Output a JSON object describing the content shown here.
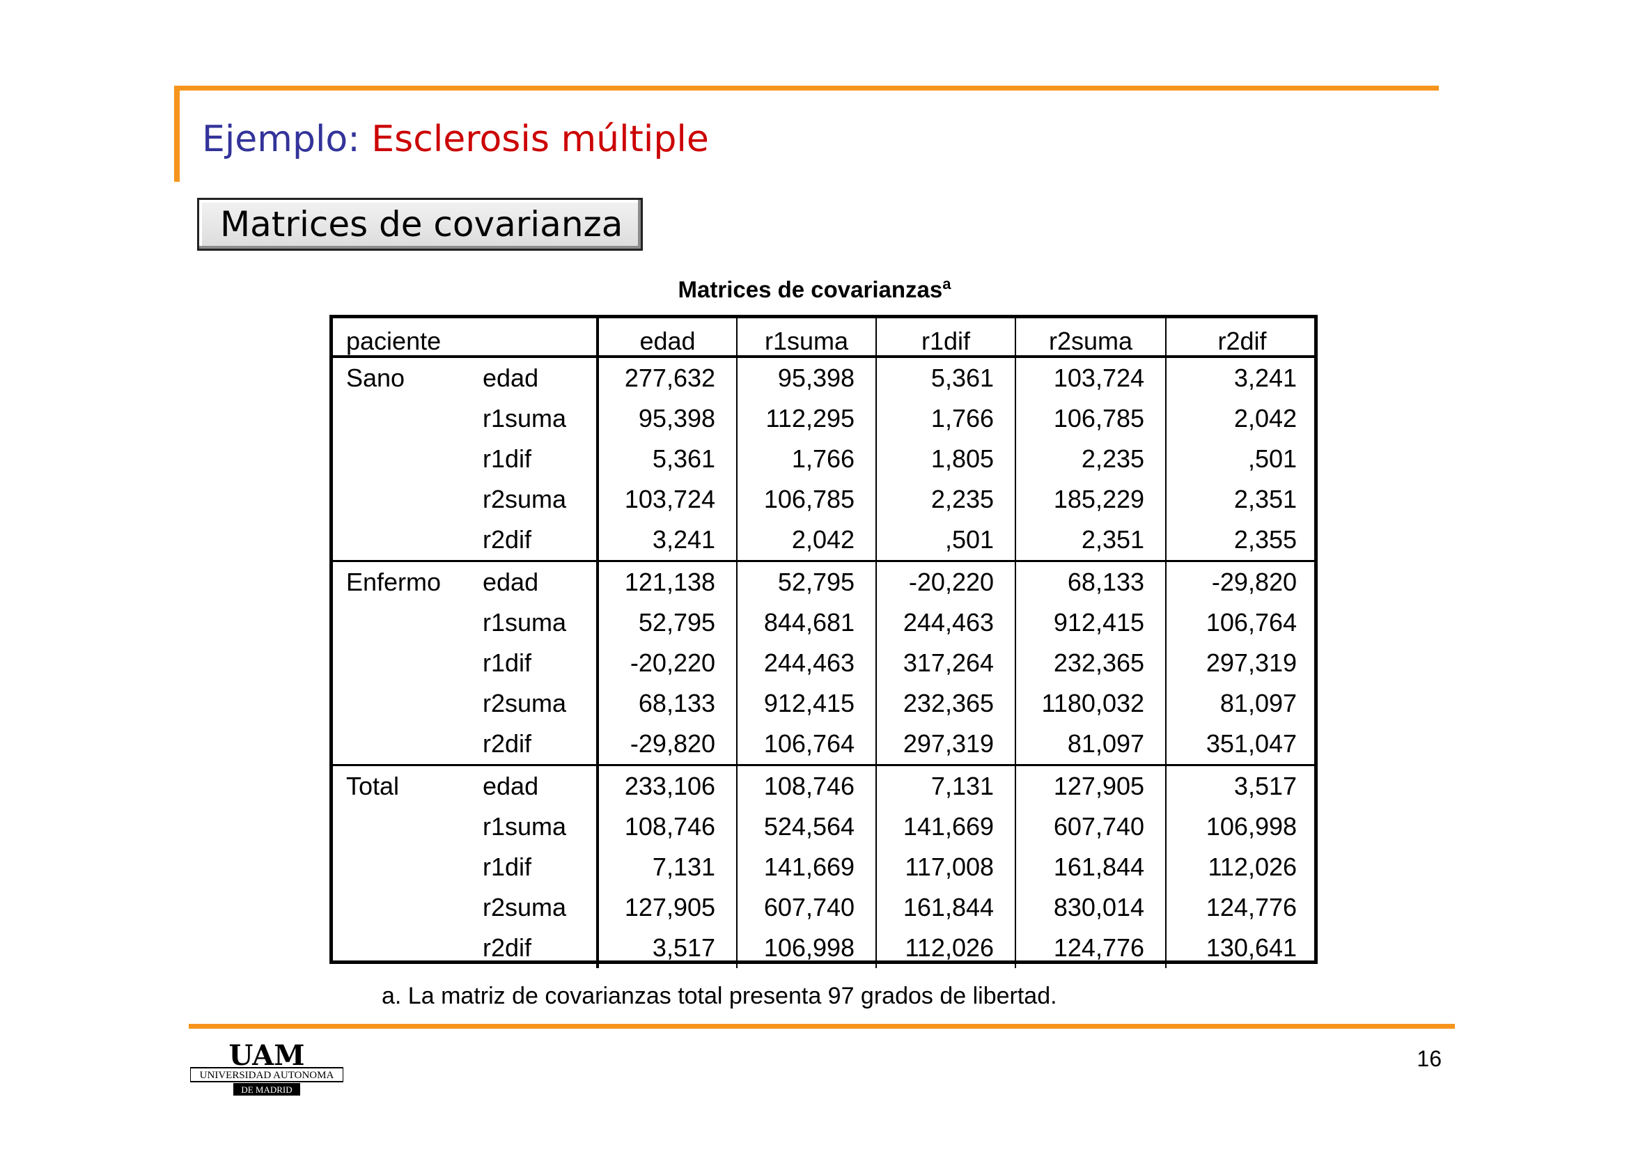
{
  "header": {
    "title_prefix": "Ejemplo:",
    "title_main": "Esclerosis múltiple",
    "subtitle": "Matrices de covarianza"
  },
  "table": {
    "caption": "Matrices de covarianzas",
    "caption_marker": "a",
    "row_header": "paciente",
    "columns": [
      "edad",
      "r1suma",
      "r1dif",
      "r2suma",
      "r2dif"
    ],
    "groups": [
      {
        "name": "Sano",
        "rows": [
          {
            "var": "edad",
            "values": [
              "277,632",
              "95,398",
              "5,361",
              "103,724",
              "3,241"
            ]
          },
          {
            "var": "r1suma",
            "values": [
              "95,398",
              "112,295",
              "1,766",
              "106,785",
              "2,042"
            ]
          },
          {
            "var": "r1dif",
            "values": [
              "5,361",
              "1,766",
              "1,805",
              "2,235",
              ",501"
            ]
          },
          {
            "var": "r2suma",
            "values": [
              "103,724",
              "106,785",
              "2,235",
              "185,229",
              "2,351"
            ]
          },
          {
            "var": "r2dif",
            "values": [
              "3,241",
              "2,042",
              ",501",
              "2,351",
              "2,355"
            ]
          }
        ]
      },
      {
        "name": "Enfermo",
        "rows": [
          {
            "var": "edad",
            "values": [
              "121,138",
              "52,795",
              "-20,220",
              "68,133",
              "-29,820"
            ]
          },
          {
            "var": "r1suma",
            "values": [
              "52,795",
              "844,681",
              "244,463",
              "912,415",
              "106,764"
            ]
          },
          {
            "var": "r1dif",
            "values": [
              "-20,220",
              "244,463",
              "317,264",
              "232,365",
              "297,319"
            ]
          },
          {
            "var": "r2suma",
            "values": [
              "68,133",
              "912,415",
              "232,365",
              "1180,032",
              "81,097"
            ]
          },
          {
            "var": "r2dif",
            "values": [
              "-29,820",
              "106,764",
              "297,319",
              "81,097",
              "351,047"
            ]
          }
        ]
      },
      {
        "name": "Total",
        "rows": [
          {
            "var": "edad",
            "values": [
              "233,106",
              "108,746",
              "7,131",
              "127,905",
              "3,517"
            ]
          },
          {
            "var": "r1suma",
            "values": [
              "108,746",
              "524,564",
              "141,669",
              "607,740",
              "106,998"
            ]
          },
          {
            "var": "r1dif",
            "values": [
              "7,131",
              "141,669",
              "117,008",
              "161,844",
              "112,026"
            ]
          },
          {
            "var": "r2suma",
            "values": [
              "127,905",
              "607,740",
              "161,844",
              "830,014",
              "124,776"
            ]
          },
          {
            "var": "r2dif",
            "values": [
              "3,517",
              "106,998",
              "112,026",
              "124,776",
              "130,641"
            ]
          }
        ]
      }
    ],
    "footnote": "a. La matriz de covarianzas total presenta 97 grados de libertad."
  },
  "footer": {
    "page_number": "16",
    "logo": {
      "letters": "UAM",
      "line1": "UNIVERSIDAD AUTONOMA",
      "line2": "DE MADRID"
    }
  },
  "colors": {
    "accent_orange": "#f7941d",
    "title_blue": "#33339a",
    "title_red": "#cc0000"
  }
}
